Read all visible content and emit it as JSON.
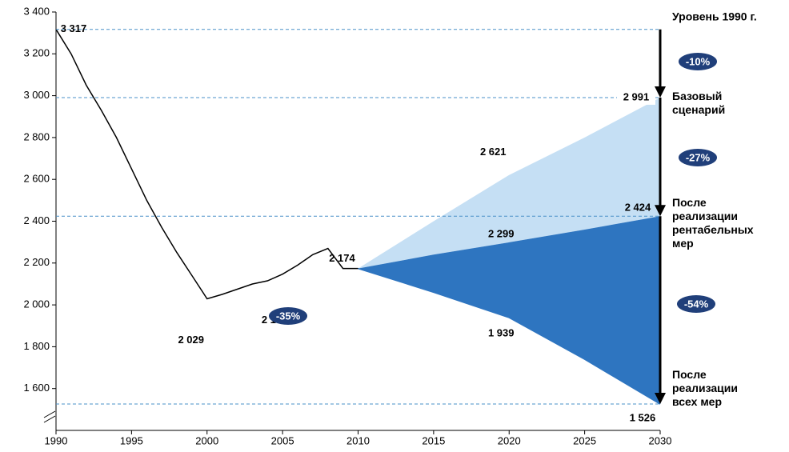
{
  "chart_data": {
    "type": "line",
    "ylim": [
      1400,
      3400
    ],
    "yticks": [
      {
        "value": 1600,
        "label": "1 600"
      },
      {
        "value": 1800,
        "label": "1 800"
      },
      {
        "value": 2000,
        "label": "2 000"
      },
      {
        "value": 2200,
        "label": "2 200"
      },
      {
        "value": 2400,
        "label": "2 400"
      },
      {
        "value": 2600,
        "label": "2 600"
      },
      {
        "value": 2800,
        "label": "2 800"
      },
      {
        "value": 3000,
        "label": "3 000"
      },
      {
        "value": 3200,
        "label": "3 200"
      },
      {
        "value": 3400,
        "label": "3 400"
      }
    ],
    "xlim": [
      1990,
      2030
    ],
    "xticks": [
      1990,
      1995,
      2000,
      2005,
      2010,
      2015,
      2020,
      2025,
      2030
    ],
    "history": {
      "color": "#000000",
      "x": [
        1990,
        1991,
        1992,
        1993,
        1994,
        1995,
        1996,
        1997,
        1998,
        1999,
        2000,
        2001,
        2002,
        2003,
        2004,
        2005,
        2006,
        2007,
        2008,
        2009,
        2010
      ],
      "values": [
        3317,
        3200,
        3050,
        2930,
        2800,
        2650,
        2500,
        2370,
        2250,
        2140,
        2029,
        2050,
        2075,
        2100,
        2115,
        2147,
        2190,
        2240,
        2270,
        2174,
        2174
      ],
      "value_labels": [
        "3 317",
        null,
        null,
        null,
        null,
        null,
        null,
        null,
        null,
        null,
        "2 029",
        null,
        null,
        null,
        null,
        "2 147",
        null,
        null,
        null,
        null,
        "2 174"
      ]
    },
    "series": [
      {
        "name": "Базовый сценарий",
        "color": "#c5dff4",
        "x": [
          2010,
          2015,
          2020,
          2025,
          2030
        ],
        "values": [
          2174,
          2400,
          2621,
          2800,
          2991
        ],
        "value_labels": [
          null,
          null,
          "2 621",
          null,
          "2 991"
        ]
      },
      {
        "name": "После реализации рентабельных мер",
        "color": "#2e75c0",
        "x": [
          2010,
          2015,
          2020,
          2025,
          2030
        ],
        "values": [
          2174,
          2240,
          2299,
          2360,
          2424
        ],
        "value_labels": [
          null,
          null,
          "2 299",
          null,
          "2 424"
        ]
      },
      {
        "name": "После реализации всех мер",
        "color": "#2e75c0",
        "x": [
          2010,
          2015,
          2020,
          2025,
          2030
        ],
        "values": [
          2174,
          2060,
          1939,
          1740,
          1526
        ],
        "value_labels": [
          null,
          null,
          "1 939",
          null,
          "1 526"
        ]
      }
    ],
    "level_label": "Уровень 1990 г.",
    "annotations": [
      "-10%",
      "-27%",
      "-54%",
      "-35%"
    ]
  }
}
